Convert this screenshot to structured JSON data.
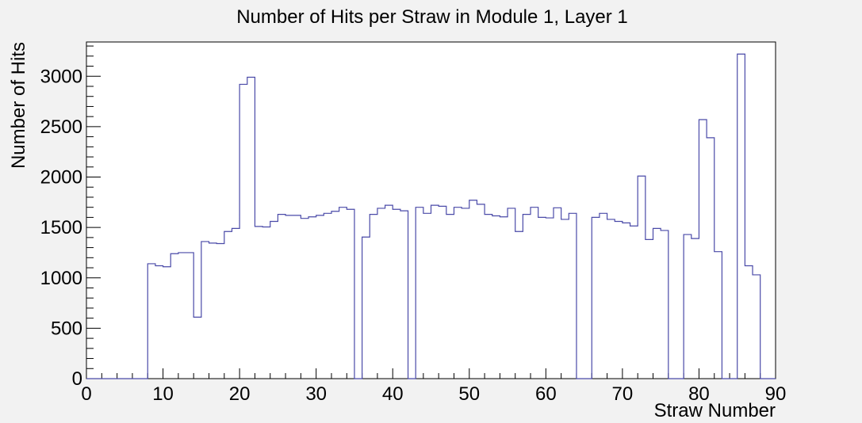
{
  "chart_data": {
    "type": "bar",
    "title": "Number of Hits per Straw in Module 1, Layer 1",
    "xlabel": "Straw Number",
    "ylabel": "Number of Hits",
    "xlim": [
      0,
      90
    ],
    "ylim": [
      0,
      3340
    ],
    "x_ticks": [
      0,
      10,
      20,
      30,
      40,
      50,
      60,
      70,
      80,
      90
    ],
    "y_ticks": [
      0,
      500,
      1000,
      1500,
      2000,
      2500,
      3000
    ],
    "x_tick_labels": [
      "0",
      "10",
      "20",
      "30",
      "40",
      "50",
      "60",
      "70",
      "80",
      "90"
    ],
    "y_tick_labels": [
      "0",
      "500",
      "1000",
      "1500",
      "2000",
      "2500",
      "3000"
    ],
    "bin_width": 1,
    "bin_starts": [
      0,
      1,
      2,
      3,
      4,
      5,
      6,
      7,
      8,
      9,
      10,
      11,
      12,
      13,
      14,
      15,
      16,
      17,
      18,
      19,
      20,
      21,
      22,
      23,
      24,
      25,
      26,
      27,
      28,
      29,
      30,
      31,
      32,
      33,
      34,
      35,
      36,
      37,
      38,
      39,
      40,
      41,
      42,
      43,
      44,
      45,
      46,
      47,
      48,
      49,
      50,
      51,
      52,
      53,
      54,
      55,
      56,
      57,
      58,
      59,
      60,
      61,
      62,
      63,
      64,
      65,
      66,
      67,
      68,
      69,
      70,
      71,
      72,
      73,
      74,
      75,
      76,
      77,
      78,
      79,
      80,
      81,
      82,
      83,
      84,
      85,
      86,
      87,
      88,
      89
    ],
    "values": [
      0,
      0,
      0,
      0,
      0,
      0,
      0,
      0,
      1140,
      1120,
      1110,
      1240,
      1250,
      1250,
      610,
      1360,
      1345,
      1340,
      1460,
      1490,
      2920,
      2990,
      1510,
      1505,
      1560,
      1630,
      1620,
      1620,
      1590,
      1605,
      1620,
      1640,
      1660,
      1700,
      1680,
      0,
      1405,
      1630,
      1690,
      1720,
      1680,
      1665,
      0,
      1700,
      1640,
      1720,
      1710,
      1630,
      1700,
      1690,
      1770,
      1730,
      1630,
      1615,
      1605,
      1690,
      1460,
      1630,
      1700,
      1600,
      1595,
      1695,
      1580,
      1640,
      0,
      0,
      1600,
      1640,
      1580,
      1560,
      1545,
      1515,
      2010,
      1380,
      1490,
      1470,
      0,
      0,
      1430,
      1390,
      2570,
      2390,
      1260,
      0,
      0,
      3220,
      1120,
      1030,
      0,
      0
    ],
    "line_color": "#4a4aa8",
    "grid": false,
    "legend": "none"
  }
}
